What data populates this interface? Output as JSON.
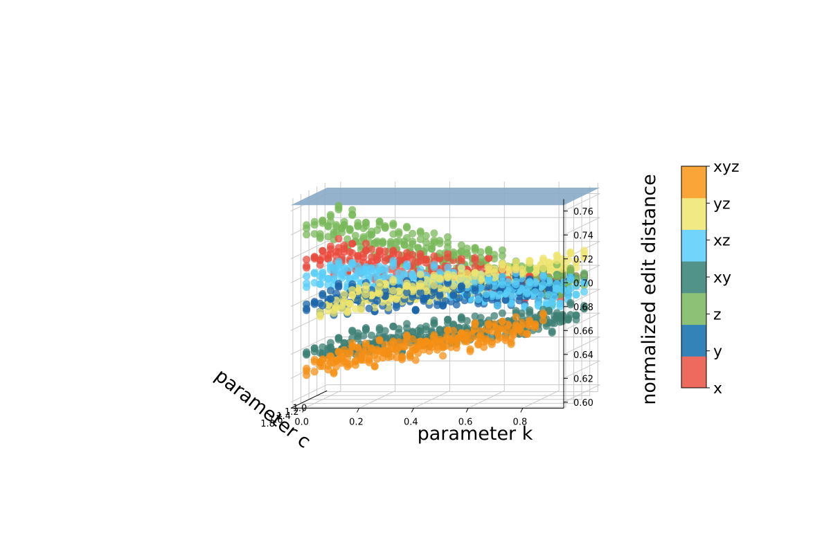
{
  "chart_data": {
    "type": "scatter",
    "projection": "3d",
    "xlabel": "parameter k",
    "ylabel": "parameter c",
    "zlabel": "normalized edit distance",
    "x_ticks": [
      "0.0",
      "0.2",
      "0.4",
      "0.6",
      "0.8"
    ],
    "y_ticks": [
      "1.0",
      "1.2",
      "1.4",
      "1.6",
      "1.8"
    ],
    "z_ticks": [
      "0.60",
      "0.62",
      "0.64",
      "0.66",
      "0.68",
      "0.70",
      "0.72",
      "0.74",
      "0.76"
    ],
    "xlim": [
      -0.05,
      0.95
    ],
    "ylim": [
      0.95,
      1.85
    ],
    "zlim": [
      0.595,
      0.77
    ],
    "grid": true,
    "reference_plane": {
      "z": 0.765,
      "color": "#8aaac6"
    },
    "colorbar": {
      "labels": [
        "x",
        "y",
        "z",
        "xy",
        "xz",
        "yz",
        "xyz"
      ],
      "colors": [
        "#ec6a5e",
        "#3383b8",
        "#8cc176",
        "#519289",
        "#71d4fb",
        "#f1e984",
        "#f9a537"
      ]
    },
    "series": [
      {
        "name": "x",
        "color": "#ea4a3c",
        "z_at_k0": 0.718,
        "z_at_k09": 0.69,
        "k_min": 0.0,
        "k_max": 0.9
      },
      {
        "name": "y",
        "color": "#1a64a8",
        "z_at_k0": 0.68,
        "z_at_k09": 0.69,
        "k_min": 0.0,
        "k_max": 0.9
      },
      {
        "name": "z",
        "color": "#78b85a",
        "z_at_k0": 0.745,
        "z_at_k09": 0.69,
        "k_min": 0.0,
        "k_max": 0.9
      },
      {
        "name": "xy",
        "color": "#3d7f74",
        "z_at_k0": 0.64,
        "z_at_k09": 0.665,
        "k_min": 0.0,
        "k_max": 0.9
      },
      {
        "name": "xz",
        "color": "#57cdf8",
        "z_at_k0": 0.703,
        "z_at_k09": 0.684,
        "k_min": 0.0,
        "k_max": 0.9
      },
      {
        "name": "yz",
        "color": "#eee46d",
        "z_at_k0": 0.677,
        "z_at_k09": 0.708,
        "k_min": 0.05,
        "k_max": 0.9
      },
      {
        "name": "xyz",
        "color": "#f58f14",
        "z_at_k0": 0.628,
        "z_at_k09": 0.662,
        "k_min": 0.0,
        "k_max": 0.75
      }
    ]
  }
}
